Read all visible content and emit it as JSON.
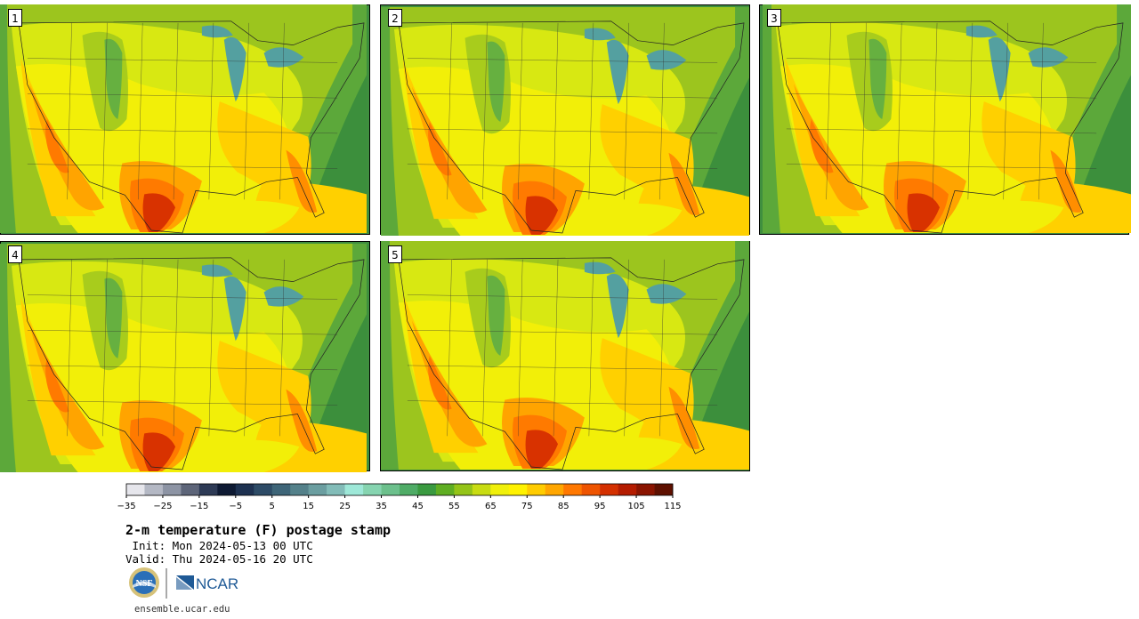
{
  "panels": [
    {
      "label": "1"
    },
    {
      "label": "2"
    },
    {
      "label": "3"
    },
    {
      "label": "4"
    },
    {
      "label": "5"
    }
  ],
  "colorbar": {
    "colors": [
      "#e6e6ec",
      "#b4b8c4",
      "#8d94a4",
      "#5d6579",
      "#2d3a55",
      "#0e1a33",
      "#1d3150",
      "#2d4b66",
      "#3e6578",
      "#54818a",
      "#6b9ea0",
      "#82bcb8",
      "#9ee8d8",
      "#86d4b0",
      "#6cc08c",
      "#4fac66",
      "#3a9a40",
      "#5fae22",
      "#94c418",
      "#c8dc12",
      "#f0f00a",
      "#fff200",
      "#ffcc00",
      "#ffa600",
      "#ff7800",
      "#ee5400",
      "#d43000",
      "#b41c00",
      "#8a1400",
      "#5e1000"
    ],
    "ticks": [
      "−35",
      "−25",
      "−15",
      "−5",
      "5",
      "15",
      "25",
      "35",
      "45",
      "55",
      "65",
      "75",
      "85",
      "95",
      "105",
      "115"
    ]
  },
  "title": "2-m temperature (F) postage stamp",
  "init_line": " Init: Mon 2024-05-13 00 UTC",
  "valid_line": "Valid: Thu 2024-05-16 20 UTC",
  "logos": {
    "nsf": "NSF",
    "ncar": "NCAR"
  },
  "site": "ensemble.ucar.edu"
}
